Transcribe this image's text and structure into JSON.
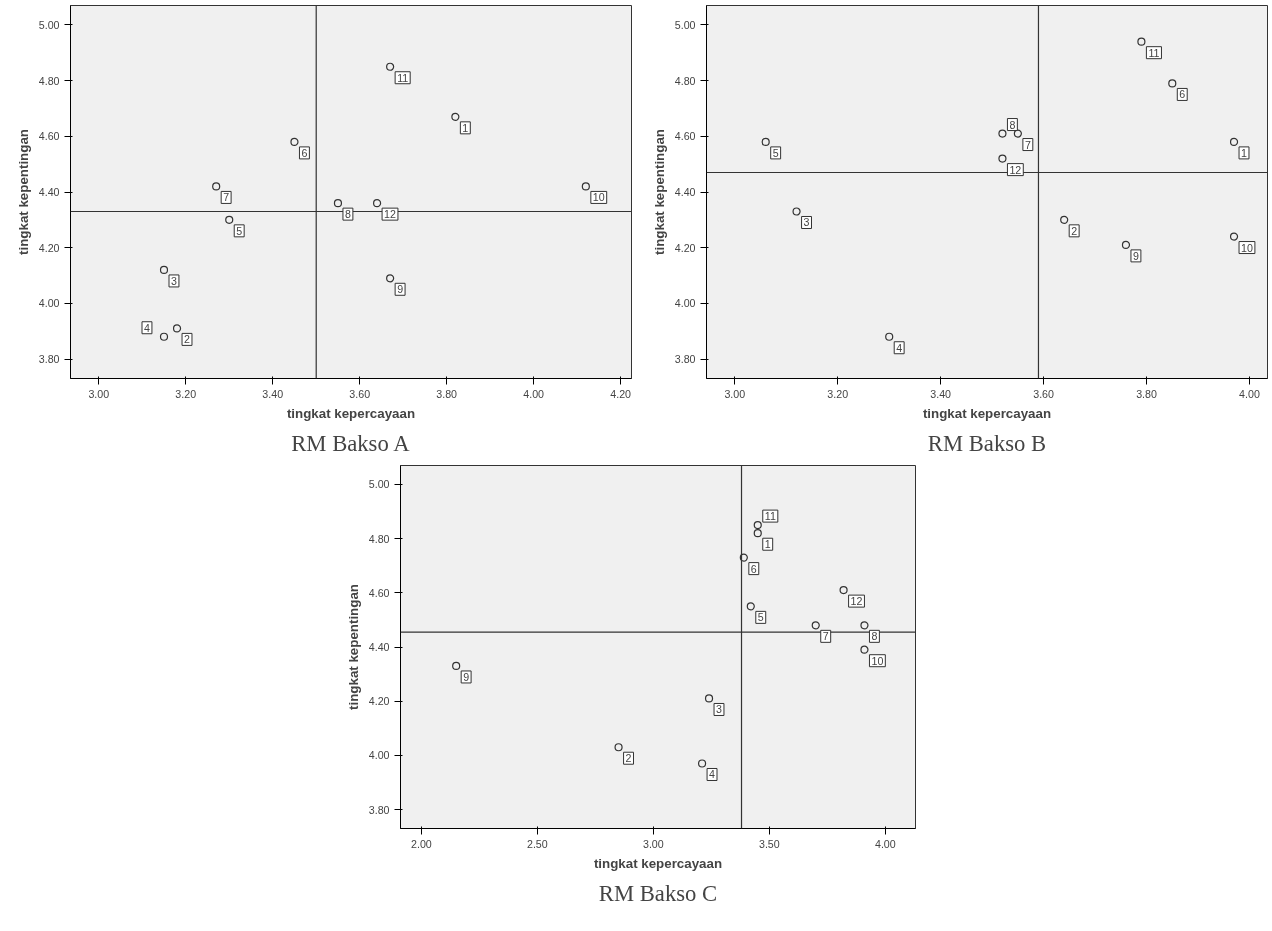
{
  "chart_data": [
    {
      "type": "scatter",
      "title": "RM Bakso A",
      "xlabel": "tingkat kepercayaan",
      "ylabel": "tingkat kepentingan",
      "marker": "circle",
      "grid": false,
      "xlim": [
        2.935,
        4.225
      ],
      "ylim": [
        3.73,
        5.07
      ],
      "xticks": [
        {
          "value": 3.0,
          "label": "3.00"
        },
        {
          "value": 3.2,
          "label": "3.20"
        },
        {
          "value": 3.4,
          "label": "3.40"
        },
        {
          "value": 3.6,
          "label": "3.60"
        },
        {
          "value": 3.8,
          "label": "3.80"
        },
        {
          "value": 4.0,
          "label": "4.00"
        },
        {
          "value": 4.2,
          "label": "4.20"
        }
      ],
      "yticks": [
        {
          "value": 3.8,
          "label": "3.80"
        },
        {
          "value": 4.0,
          "label": "4.00"
        },
        {
          "value": 4.2,
          "label": "4.20"
        },
        {
          "value": 4.4,
          "label": "4.40"
        },
        {
          "value": 4.6,
          "label": "4.60"
        },
        {
          "value": 4.8,
          "label": "4.80"
        },
        {
          "value": 5.0,
          "label": "5.00"
        }
      ],
      "series": [
        {
          "color": "#333333",
          "x": [
            3.82,
            3.18,
            3.15,
            3.15,
            3.3,
            3.45,
            3.27,
            3.55,
            3.67,
            4.12,
            3.67,
            3.64
          ],
          "values": [
            4.67,
            3.91,
            4.12,
            3.88,
            4.3,
            4.58,
            4.42,
            4.36,
            4.09,
            4.42,
            4.85,
            4.36
          ]
        }
      ],
      "ref_lines": [
        {
          "axis": "x",
          "value": 3.5,
          "color": "#333333"
        },
        {
          "axis": "y",
          "value": 4.33,
          "color": "#333333"
        }
      ],
      "annotations": [
        {
          "text": "1",
          "x": 3.82,
          "y": 4.67
        },
        {
          "text": "2",
          "x": 3.18,
          "y": 3.91
        },
        {
          "text": "3",
          "x": 3.15,
          "y": 4.12
        },
        {
          "text": "4",
          "x": 3.15,
          "y": 3.88
        },
        {
          "text": "5",
          "x": 3.3,
          "y": 4.3
        },
        {
          "text": "6",
          "x": 3.45,
          "y": 4.58
        },
        {
          "text": "7",
          "x": 3.27,
          "y": 4.42
        },
        {
          "text": "8",
          "x": 3.55,
          "y": 4.36
        },
        {
          "text": "9",
          "x": 3.67,
          "y": 4.09
        },
        {
          "text": "10",
          "x": 4.12,
          "y": 4.42
        },
        {
          "text": "11",
          "x": 3.67,
          "y": 4.85
        },
        {
          "text": "12",
          "x": 3.64,
          "y": 4.36
        }
      ]
    },
    {
      "type": "scatter",
      "title": "RM Bakso B",
      "xlabel": "tingkat kepercayaan",
      "ylabel": "tingkat kepentingan",
      "marker": "circle",
      "grid": false,
      "xlim": [
        2.945,
        4.035
      ],
      "ylim": [
        3.73,
        5.07
      ],
      "xticks": [
        {
          "value": 3.0,
          "label": "3.00"
        },
        {
          "value": 3.2,
          "label": "3.20"
        },
        {
          "value": 3.4,
          "label": "3.40"
        },
        {
          "value": 3.6,
          "label": "3.60"
        },
        {
          "value": 3.8,
          "label": "3.80"
        },
        {
          "value": 4.0,
          "label": "4.00"
        }
      ],
      "yticks": [
        {
          "value": 3.8,
          "label": "3.80"
        },
        {
          "value": 4.0,
          "label": "4.00"
        },
        {
          "value": 4.2,
          "label": "4.20"
        },
        {
          "value": 4.4,
          "label": "4.40"
        },
        {
          "value": 4.6,
          "label": "4.60"
        },
        {
          "value": 4.8,
          "label": "4.80"
        },
        {
          "value": 5.0,
          "label": "5.00"
        }
      ],
      "series": [
        {
          "color": "#333333",
          "x": [
            3.97,
            3.64,
            3.12,
            3.3,
            3.06,
            3.85,
            3.55,
            3.52,
            3.76,
            3.97,
            3.79,
            3.52
          ],
          "values": [
            4.58,
            4.3,
            4.33,
            3.88,
            4.58,
            4.79,
            4.61,
            4.61,
            4.21,
            4.24,
            4.94,
            4.52
          ]
        }
      ],
      "ref_lines": [
        {
          "axis": "x",
          "value": 3.59,
          "color": "#333333"
        },
        {
          "axis": "y",
          "value": 4.47,
          "color": "#333333"
        }
      ],
      "annotations": [
        {
          "text": "1",
          "x": 3.97,
          "y": 4.58
        },
        {
          "text": "2",
          "x": 3.64,
          "y": 4.3
        },
        {
          "text": "3",
          "x": 3.12,
          "y": 4.33
        },
        {
          "text": "4",
          "x": 3.3,
          "y": 3.88
        },
        {
          "text": "5",
          "x": 3.06,
          "y": 4.58
        },
        {
          "text": "6",
          "x": 3.85,
          "y": 4.79
        },
        {
          "text": "7",
          "x": 3.55,
          "y": 4.61
        },
        {
          "text": "8",
          "x": 3.52,
          "y": 4.61
        },
        {
          "text": "9",
          "x": 3.76,
          "y": 4.21
        },
        {
          "text": "10",
          "x": 3.97,
          "y": 4.24
        },
        {
          "text": "11",
          "x": 3.79,
          "y": 4.94
        },
        {
          "text": "12",
          "x": 3.52,
          "y": 4.52
        }
      ]
    },
    {
      "type": "scatter",
      "title": "RM Bakso C",
      "xlabel": "tingkat kepercayaan",
      "ylabel": "tingkat kepentingan",
      "marker": "circle",
      "grid": false,
      "xlim": [
        1.91,
        4.13
      ],
      "ylim": [
        3.73,
        5.07
      ],
      "xticks": [
        {
          "value": 2.0,
          "label": "2.00"
        },
        {
          "value": 2.5,
          "label": "2.50"
        },
        {
          "value": 3.0,
          "label": "3.00"
        },
        {
          "value": 3.5,
          "label": "3.50"
        },
        {
          "value": 4.0,
          "label": "4.00"
        }
      ],
      "yticks": [
        {
          "value": 3.8,
          "label": "3.80"
        },
        {
          "value": 4.0,
          "label": "4.00"
        },
        {
          "value": 4.2,
          "label": "4.20"
        },
        {
          "value": 4.4,
          "label": "4.40"
        },
        {
          "value": 4.6,
          "label": "4.60"
        },
        {
          "value": 4.8,
          "label": "4.80"
        },
        {
          "value": 5.0,
          "label": "5.00"
        }
      ],
      "series": [
        {
          "color": "#333333",
          "x": [
            3.45,
            2.85,
            3.24,
            3.21,
            3.42,
            3.39,
            3.7,
            3.91,
            2.15,
            3.91,
            3.45,
            3.82
          ],
          "values": [
            4.82,
            4.03,
            4.21,
            3.97,
            4.55,
            4.73,
            4.48,
            4.48,
            4.33,
            4.39,
            4.85,
            4.61
          ]
        }
      ],
      "ref_lines": [
        {
          "axis": "x",
          "value": 3.38,
          "color": "#333333"
        },
        {
          "axis": "y",
          "value": 4.455,
          "color": "#333333"
        }
      ],
      "annotations": [
        {
          "text": "1",
          "x": 3.45,
          "y": 4.82
        },
        {
          "text": "2",
          "x": 2.85,
          "y": 4.03
        },
        {
          "text": "3",
          "x": 3.24,
          "y": 4.21
        },
        {
          "text": "4",
          "x": 3.21,
          "y": 3.97
        },
        {
          "text": "5",
          "x": 3.42,
          "y": 4.55
        },
        {
          "text": "6",
          "x": 3.39,
          "y": 4.73
        },
        {
          "text": "7",
          "x": 3.7,
          "y": 4.48
        },
        {
          "text": "8",
          "x": 3.91,
          "y": 4.48
        },
        {
          "text": "9",
          "x": 2.15,
          "y": 4.33
        },
        {
          "text": "10",
          "x": 3.91,
          "y": 4.39
        },
        {
          "text": "11",
          "x": 3.45,
          "y": 4.85
        },
        {
          "text": "12",
          "x": 3.82,
          "y": 4.61
        }
      ]
    }
  ]
}
